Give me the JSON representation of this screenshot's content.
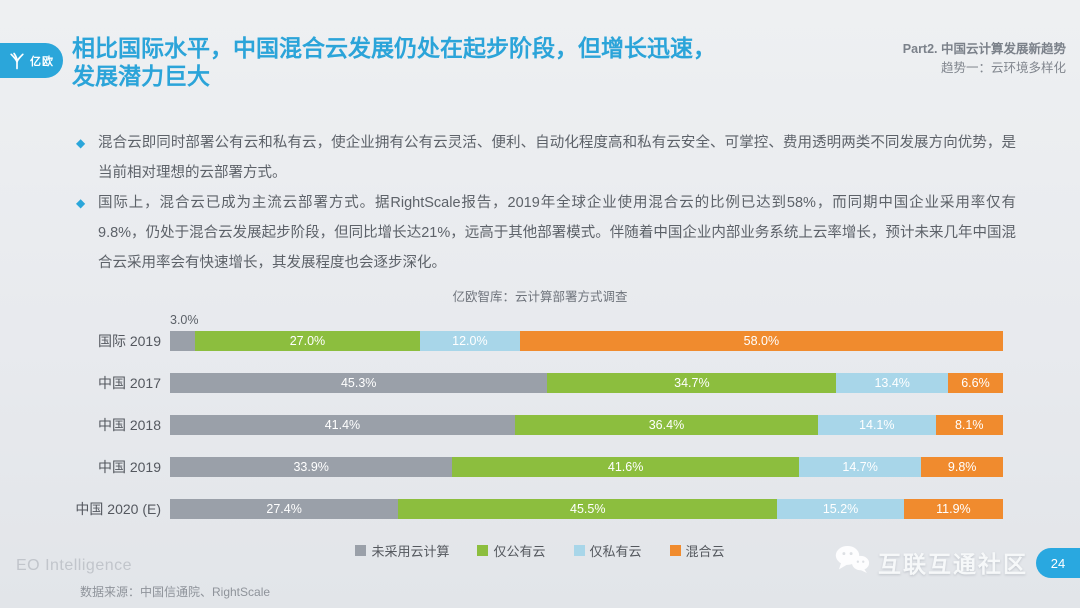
{
  "header": {
    "logo_text": "亿欧",
    "title_line1": "相比国际水平，中国混合云发展仍处在起步阶段，但增长迅速，",
    "title_line2": "发展潜力巨大",
    "part_line1": "Part2. 中国云计算发展新趋势",
    "part_line2": "趋势一：云环境多样化"
  },
  "icons": {
    "bullet": "◆",
    "logo": "eo-y-mark",
    "watermark": "wechat-bubbles"
  },
  "bullets": [
    "混合云即同时部署公有云和私有云，使企业拥有公有云灵活、便利、自动化程度高和私有云安全、可掌控、费用透明两类不同发展方向优势，是当前相对理想的云部署方式。",
    "国际上，混合云已成为主流云部署方式。据RightScale报告，2019年全球企业使用混合云的比例已达到58%，而同期中国企业采用率仅有9.8%，仍处于混合云发展起步阶段，但同比增长达21%，远高于其他部署模式。伴随着中国企业内部业务系统上云率增长，预计未来几年中国混合云采用率会有快速增长，其发展程度也会逐步深化。"
  ],
  "chart_data": {
    "type": "bar",
    "orientation": "horizontal",
    "stacked": true,
    "title": "亿欧智库：云计算部署方式调查",
    "categories": [
      "国际 2019",
      "中国 2017",
      "中国 2018",
      "中国 2019",
      "中国 2020 (E)"
    ],
    "series": [
      {
        "name": "未采用云计算",
        "color": "#9aa0a9",
        "values": [
          3.0,
          45.3,
          41.4,
          33.9,
          27.4
        ]
      },
      {
        "name": "仅公有云",
        "color": "#8cbe3e",
        "values": [
          27.0,
          34.7,
          36.4,
          41.6,
          45.5
        ]
      },
      {
        "name": "仅私有云",
        "color": "#a8d6e9",
        "values": [
          12.0,
          13.4,
          14.1,
          14.7,
          15.2
        ]
      },
      {
        "name": "混合云",
        "color": "#f08b2e",
        "values": [
          58.0,
          6.6,
          8.1,
          9.8,
          11.9
        ]
      }
    ],
    "value_suffix": "%",
    "xlim": [
      0,
      100
    ],
    "grid": false,
    "legend_position": "bottom",
    "data_labels": "inside-white; values below 5% shown above bar in gray"
  },
  "footer": {
    "brand": "EO Intelligence",
    "source": "数据来源：中国信通院、RightScale",
    "watermark": "互联互通社区",
    "page_number": "24"
  }
}
